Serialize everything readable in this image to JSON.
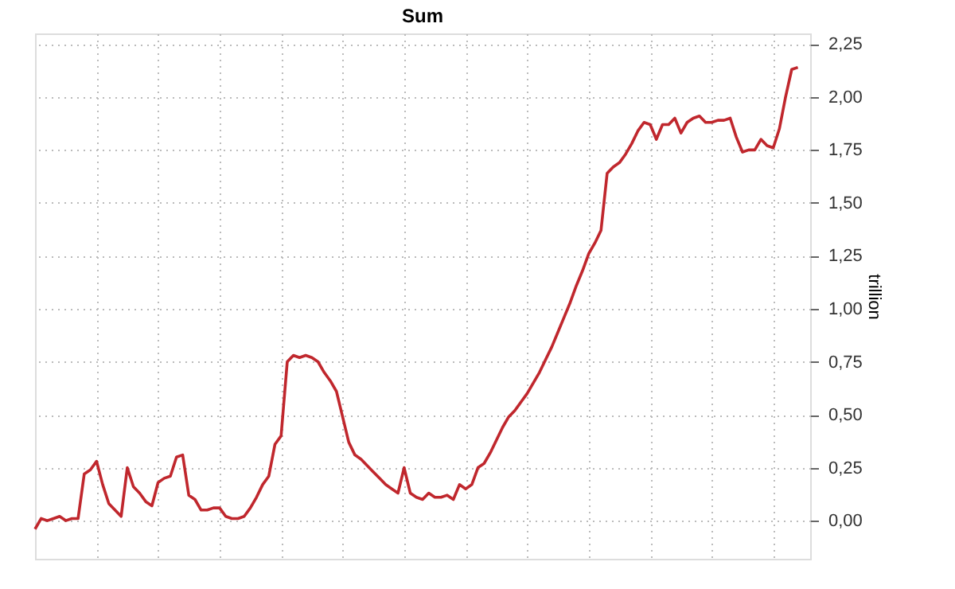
{
  "chart_data": {
    "type": "line",
    "title": "Sum",
    "ylabel": "trillion",
    "categories": [
      null,
      null,
      null,
      null,
      null,
      null,
      null,
      null,
      null,
      null,
      null,
      null,
      null,
      null,
      null,
      null,
      null,
      null,
      null,
      null,
      null,
      null,
      null,
      null,
      null,
      null,
      null,
      null,
      null,
      null,
      null,
      null,
      null,
      null,
      null,
      null,
      null,
      null,
      null,
      null,
      null,
      null,
      null,
      null,
      null,
      null,
      null,
      null,
      null,
      null,
      null,
      null,
      null,
      null,
      null,
      null,
      null,
      null,
      null,
      null,
      null,
      null,
      null,
      null,
      null,
      null,
      null,
      null,
      null,
      null,
      null,
      null,
      null,
      null,
      null,
      null,
      null,
      null,
      null,
      null,
      null,
      null,
      null,
      null,
      null,
      null,
      null,
      null,
      null,
      null,
      null,
      null,
      null,
      null,
      null,
      null,
      null,
      null,
      null,
      null,
      null,
      null,
      null,
      null,
      null,
      null,
      null,
      null,
      null,
      null,
      null,
      null,
      null,
      null,
      null,
      null,
      null,
      null,
      null,
      null,
      null,
      null,
      null,
      null,
      null
    ],
    "series": [
      {
        "color": "#c0272d",
        "values": [
          -0.04,
          0.01,
          0.0,
          0.01,
          0.02,
          0.0,
          0.01,
          0.01,
          0.22,
          0.24,
          0.28,
          0.17,
          0.08,
          0.05,
          0.02,
          0.25,
          0.16,
          0.13,
          0.09,
          0.07,
          0.18,
          0.2,
          0.21,
          0.3,
          0.31,
          0.12,
          0.1,
          0.05,
          0.05,
          0.06,
          0.06,
          0.02,
          0.01,
          0.01,
          0.02,
          0.06,
          0.11,
          0.17,
          0.21,
          0.36,
          0.4,
          0.75,
          0.78,
          0.77,
          0.78,
          0.77,
          0.75,
          0.7,
          0.66,
          0.61,
          0.49,
          0.37,
          0.31,
          0.29,
          0.26,
          0.23,
          0.2,
          0.17,
          0.15,
          0.13,
          0.25,
          0.13,
          0.11,
          0.1,
          0.13,
          0.11,
          0.11,
          0.12,
          0.1,
          0.17,
          0.15,
          0.17,
          0.25,
          0.27,
          0.32,
          0.38,
          0.44,
          0.49,
          0.52,
          0.56,
          0.6,
          0.65,
          0.7,
          0.76,
          0.82,
          0.89,
          0.96,
          1.03,
          1.11,
          1.18,
          1.26,
          1.31,
          1.37,
          1.64,
          1.67,
          1.69,
          1.73,
          1.78,
          1.84,
          1.88,
          1.87,
          1.8,
          1.87,
          1.87,
          1.9,
          1.83,
          1.88,
          1.9,
          1.91,
          1.88,
          1.88,
          1.89,
          1.89,
          1.9,
          1.81,
          1.74,
          1.75,
          1.75,
          1.8,
          1.77,
          1.76,
          1.85,
          2.0,
          2.13,
          2.14
        ]
      }
    ],
    "ylim": [
      -0.18,
      2.3
    ],
    "yticks": [
      {
        "value": 0,
        "label": "0,00"
      },
      {
        "value": 0.25,
        "label": "0,25"
      },
      {
        "value": 0.5,
        "label": "0,50"
      },
      {
        "value": 0.75,
        "label": "0,75"
      },
      {
        "value": 1,
        "label": "1,00"
      },
      {
        "value": 1.25,
        "label": "1,25"
      },
      {
        "value": 1.5,
        "label": "1,50"
      },
      {
        "value": 1.75,
        "label": "1,75"
      },
      {
        "value": 2,
        "label": "2,00"
      },
      {
        "value": 2.25,
        "label": "2,25"
      }
    ],
    "grid": true,
    "tick_labels": "y",
    "marker": "none",
    "line_style": "solid"
  }
}
